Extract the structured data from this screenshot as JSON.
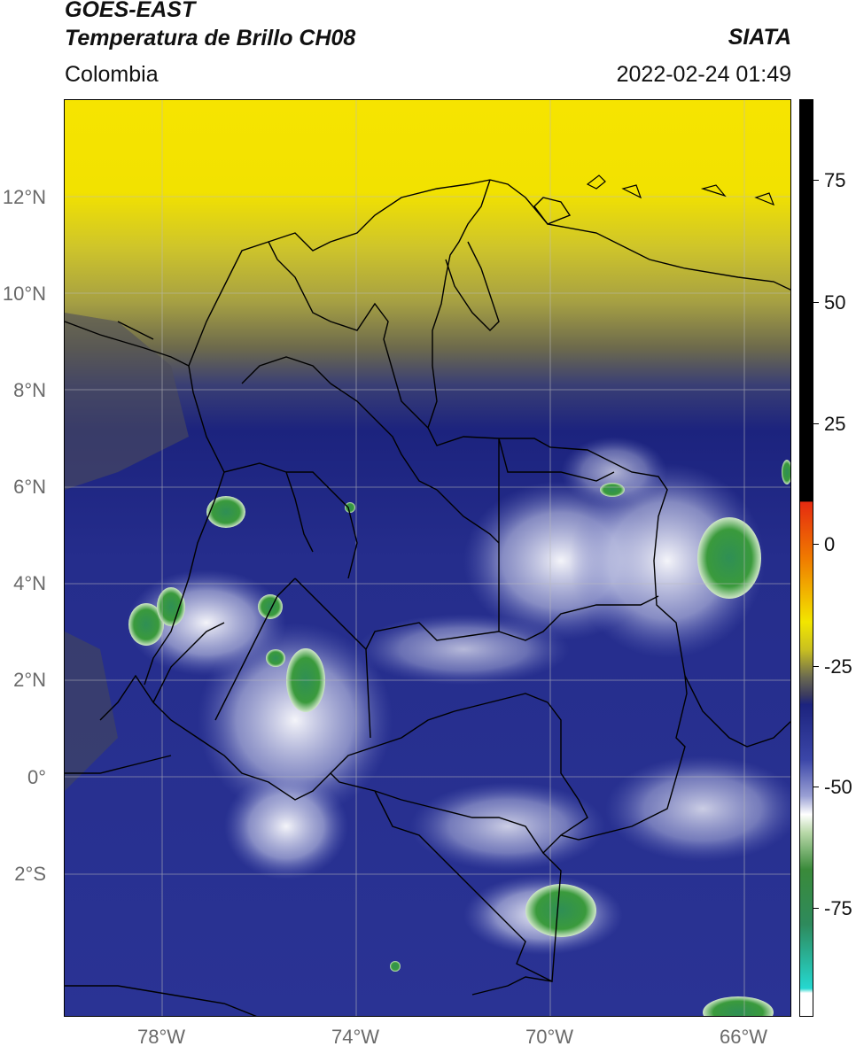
{
  "header": {
    "line1": "GOES-EAST",
    "line2": "Temperatura de Brillo CH08",
    "region": "Colombia",
    "org": "SIATA",
    "timestamp": "2022-02-24 01:49"
  },
  "axes": {
    "y_labels": [
      "12°N",
      "10°N",
      "8°N",
      "6°N",
      "4°N",
      "2°N",
      "0°",
      "2°S"
    ],
    "y_values": [
      12,
      10,
      8,
      6,
      4,
      2,
      0,
      -2
    ],
    "x_labels": [
      "78°W",
      "74°W",
      "70°W",
      "66°W"
    ],
    "x_values": [
      -78,
      -74,
      -70,
      -66
    ],
    "lon_range": [
      -80,
      -65
    ],
    "lat_range": [
      -5,
      14
    ]
  },
  "colorbar": {
    "labels": [
      "75",
      "50",
      "25",
      "0",
      "-25",
      "-50",
      "-75"
    ],
    "values": [
      75,
      50,
      25,
      0,
      -25,
      -50,
      -75
    ],
    "range": [
      -95,
      90
    ]
  },
  "colors": {
    "yellow": "#f2e600",
    "olive": "#5e5e3c",
    "navy": "#1c237e",
    "blue": "#3b46a8",
    "white": "#ffffff",
    "green": "#2f8a3c",
    "teal": "#35c8b4",
    "red": "#e52b10",
    "black": "#000000"
  }
}
